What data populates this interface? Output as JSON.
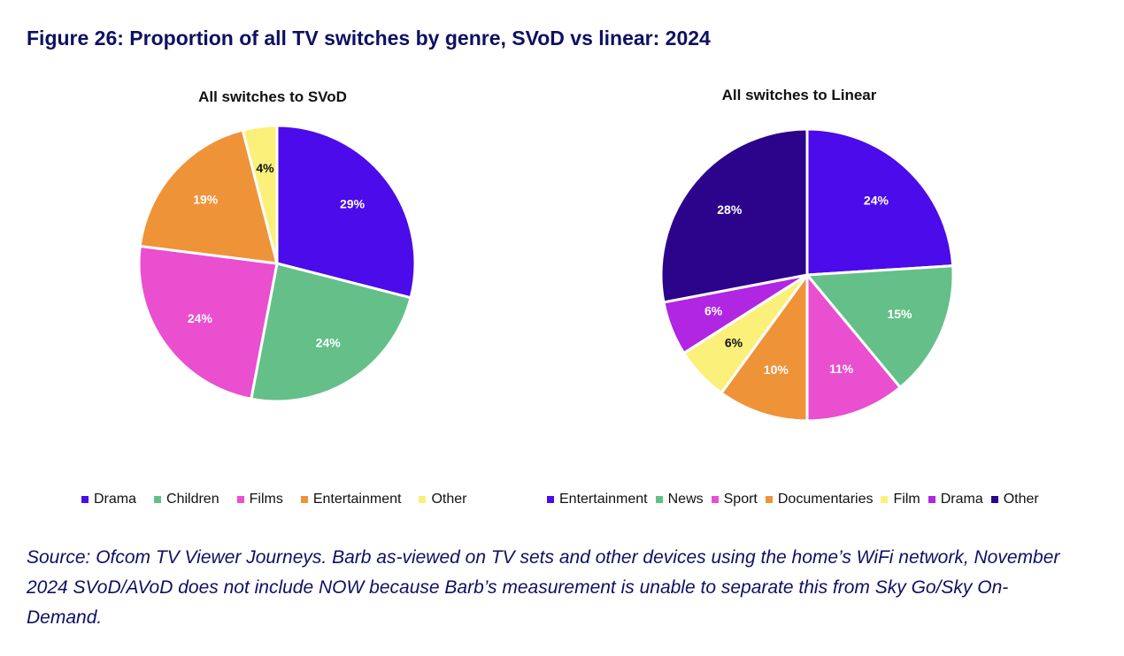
{
  "figure_title": "Figure 26: Proportion of all TV switches by genre, SVoD vs linear: 2024",
  "source_note": "Source: Ofcom TV Viewer Journeys. Barb as-viewed on TV sets and other devices using the home’s WiFi network, November 2024 SVoD/AVoD does not include NOW because Barb’s measurement is unable to separate this from Sky Go/Sky On-Demand.",
  "chart_data": [
    {
      "type": "pie",
      "title": "All switches to SVoD",
      "legend_position": "bottom",
      "labels": [
        "Drama",
        "Children",
        "Films",
        "Entertainment",
        "Other"
      ],
      "values": [
        29,
        24,
        24,
        19,
        4
      ],
      "data_labels": [
        "29%",
        "24%",
        "24%",
        "19%",
        "4%"
      ],
      "colors": [
        "#4b0bea",
        "#64c088",
        "#ea4fcf",
        "#ef9339",
        "#fbf07a"
      ],
      "label_colors": [
        "#ffffff",
        "#ffffff",
        "#ffffff",
        "#ffffff",
        "#111111"
      ]
    },
    {
      "type": "pie",
      "title": "All switches to Linear",
      "legend_position": "bottom",
      "labels": [
        "Entertainment",
        "News",
        "Sport",
        "Documentaries",
        "Film",
        "Drama",
        "Other"
      ],
      "values": [
        24,
        15,
        11,
        10,
        6,
        6,
        28
      ],
      "data_labels": [
        "24%",
        "15%",
        "11%",
        "10%",
        "6%",
        "6%",
        "28%"
      ],
      "colors": [
        "#4b0bea",
        "#64c088",
        "#ea4fcf",
        "#ef9339",
        "#fbf07a",
        "#b026e3",
        "#2c038b"
      ],
      "label_colors": [
        "#ffffff",
        "#ffffff",
        "#ffffff",
        "#ffffff",
        "#111111",
        "#ffffff",
        "#ffffff"
      ]
    }
  ]
}
